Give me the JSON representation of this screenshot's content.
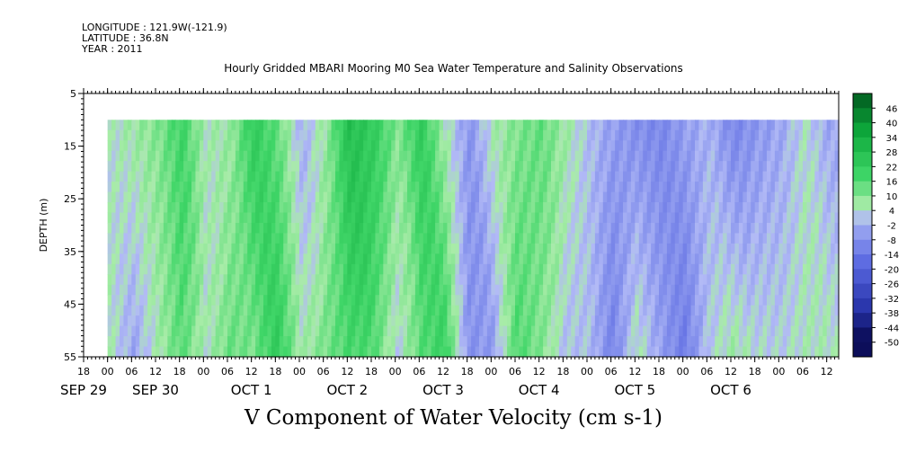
{
  "header": {
    "longitude": "LONGITUDE : 121.9W(-121.9)",
    "latitude": "LATITUDE : 36.8N",
    "year": "YEAR : 2011"
  },
  "title": "Hourly Gridded MBARI Mooring M0 Sea Water Temperature and Salinity Observations",
  "colors": {
    "land_green_dark": "#007a2e",
    "green": "#2ecc5a",
    "light_green": "#9fe39f",
    "lavender": "#aab4f2",
    "blue": "#7484e6",
    "navy": "#141a6e"
  },
  "chart_data": {
    "type": "heatmap",
    "title": "V Component of Water Velocity (cm s-1)",
    "ylabel": "DEPTH (m)",
    "ylim": [
      55,
      5
    ],
    "y_ticks": [
      "5",
      "15",
      "25",
      "35",
      "45",
      "55"
    ],
    "data_depth_range": [
      10,
      55
    ],
    "x_range_hours": [
      -6,
      183
    ],
    "data_start_hour": 0,
    "data_end_hour": 180,
    "x_hour_ticks": [
      "18",
      "00",
      "06",
      "12",
      "18",
      "00",
      "06",
      "12",
      "18",
      "00",
      "06",
      "12",
      "18",
      "00",
      "06",
      "12",
      "18",
      "00",
      "06",
      "12",
      "18",
      "00",
      "06",
      "12",
      "18",
      "00",
      "06",
      "12",
      "18",
      "00",
      "06",
      "12"
    ],
    "x_hour_tick_values": [
      -6,
      0,
      6,
      12,
      18,
      24,
      30,
      36,
      42,
      48,
      54,
      60,
      66,
      72,
      78,
      84,
      90,
      96,
      102,
      108,
      114,
      120,
      126,
      132,
      138,
      144,
      150,
      156,
      162,
      168,
      174,
      180
    ],
    "day_labels": [
      {
        "label": "SEP 29",
        "hour": -6
      },
      {
        "label": "SEP 30",
        "hour": 12
      },
      {
        "label": "OCT  1",
        "hour": 36
      },
      {
        "label": "OCT  2",
        "hour": 60
      },
      {
        "label": "OCT  3",
        "hour": 84
      },
      {
        "label": "OCT  4",
        "hour": 108
      },
      {
        "label": "OCT  5",
        "hour": 132
      },
      {
        "label": "OCT  6",
        "hour": 156
      }
    ],
    "colorbar": {
      "levels": [
        "46",
        "40",
        "34",
        "28",
        "22",
        "16",
        "10",
        "4",
        "-2",
        "-8",
        "-14",
        "-20",
        "-26",
        "-32",
        "-38",
        "-44",
        "-50"
      ],
      "min": -50,
      "max": 50
    },
    "velocity_profile": {
      "description_free": true,
      "hours": [
        0,
        6,
        12,
        18,
        24,
        30,
        36,
        42,
        48,
        54,
        60,
        66,
        72,
        78,
        84,
        90,
        96,
        102,
        108,
        114,
        120,
        126,
        132,
        138,
        144,
        150,
        156,
        162,
        168,
        174,
        180
      ],
      "surface_values": [
        2,
        6,
        10,
        20,
        4,
        6,
        24,
        14,
        -4,
        6,
        30,
        24,
        10,
        24,
        4,
        -10,
        4,
        10,
        14,
        6,
        -2,
        -8,
        -12,
        -14,
        -8,
        -4,
        -14,
        -10,
        -6,
        2,
        -6
      ],
      "bottom_values": [
        4,
        -10,
        2,
        16,
        -8,
        16,
        12,
        20,
        -2,
        18,
        22,
        6,
        -14,
        16,
        16,
        -18,
        -6,
        22,
        8,
        -10,
        -6,
        -20,
        10,
        -4,
        -16,
        4,
        10,
        10,
        6,
        8,
        4
      ]
    }
  }
}
